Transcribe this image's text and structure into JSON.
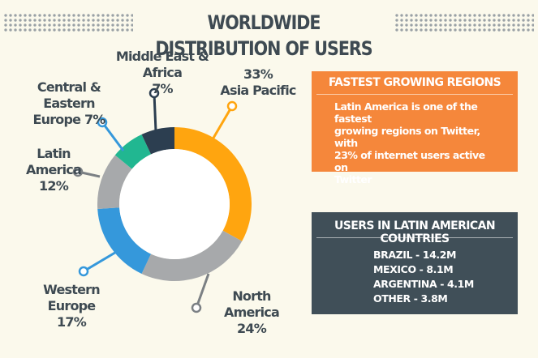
{
  "page": {
    "title": "WORLDWIDE DISTRIBUTION OF USERS"
  },
  "colors": {
    "background": "#fbf9ec",
    "title_text": "#3e4a52",
    "asia_pacific": "#ffa50f",
    "north_america": "#a7a9ab",
    "western_europe": "#3598db",
    "latin_america": "#a7a9ab",
    "central_eastern_europe": "#21b791",
    "middle_east_africa": "#2c3e50",
    "orange_panel": "#f5873b",
    "dark_panel": "#404f58"
  },
  "chart_data": {
    "type": "pie",
    "variant": "donut",
    "title": "WORLDWIDE DISTRIBUTION OF USERS",
    "slices": [
      {
        "label_line1": "33%",
        "label_line2": "Asia Pacific",
        "name": "Asia Pacific",
        "value": 33,
        "color": "#ffa50f"
      },
      {
        "label_line1": "North America",
        "label_line2": "24%",
        "name": "North America",
        "value": 24,
        "color": "#a7a9ab"
      },
      {
        "label_line1": "Western Europe",
        "label_line2": "17%",
        "name": "Western Europe",
        "value": 17,
        "color": "#3598db"
      },
      {
        "label_line1": "Latin America",
        "label_line2": "12%",
        "name": "Latin America",
        "value": 12,
        "color": "#a7a9ab"
      },
      {
        "label_line1": "Central & Eastern",
        "label_line2": "Europe 7%",
        "name": "Central & Eastern Europe",
        "value": 7,
        "color": "#21b791"
      },
      {
        "label_line1": "Middle East & Africa",
        "label_line2": "7%",
        "name": "Middle East & Africa",
        "value": 7,
        "color": "#2c3e50"
      }
    ]
  },
  "fastest_growing": {
    "heading": "FASTEST GROWING REGIONS",
    "text_line1": "Latin America is one of the fastest",
    "text_line2": "growing regions on Twitter, with",
    "text_line3": "23% of internet users active on",
    "text_line4": "Twitter"
  },
  "latin_america_users": {
    "heading": "USERS IN LATIN AMERICAN COUNTRIES",
    "countries": [
      "BRAZIL - 14.2M",
      "MEXICO - 8.1M",
      "ARGENTINA - 4.1M",
      "OTHER - 3.8M"
    ]
  }
}
